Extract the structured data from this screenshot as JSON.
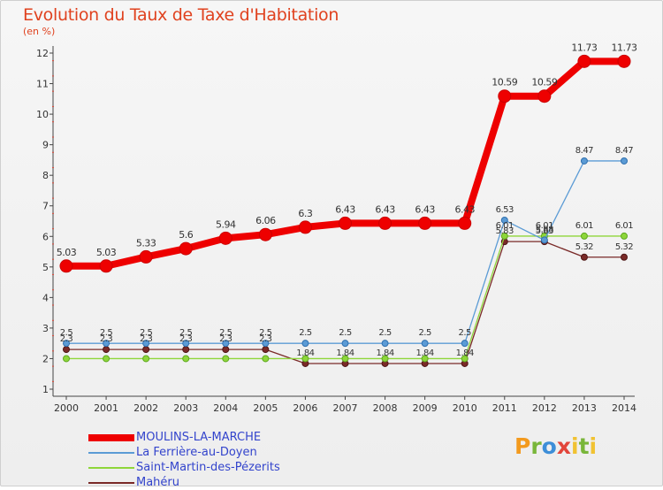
{
  "title": "Evolution du Taux de Taxe d'Habitation",
  "subtitle": "(en %)",
  "logo_text": "Proxiti",
  "chart_data": {
    "type": "line",
    "title": "Evolution du Taux de Taxe d'Habitation",
    "ylabel": "(en %)",
    "xlabel": "",
    "x": [
      "2000",
      "2001",
      "2002",
      "2003",
      "2004",
      "2005",
      "2006",
      "2007",
      "2008",
      "2009",
      "2010",
      "2011",
      "2012",
      "2013",
      "2014"
    ],
    "ylim": [
      1,
      12
    ],
    "yticks": [
      "1",
      "2",
      "3",
      "4",
      "5",
      "6",
      "7",
      "8",
      "9",
      "10",
      "11",
      "12"
    ],
    "grid": false,
    "legend_position": "bottom-left",
    "series": [
      {
        "name": "MOULINS-LA-MARCHE",
        "color": "#ee0000",
        "values": [
          5.03,
          5.03,
          5.33,
          5.6,
          5.94,
          6.06,
          6.3,
          6.43,
          6.43,
          6.43,
          6.43,
          10.59,
          10.59,
          11.73,
          11.73
        ],
        "labels": [
          "5.03",
          "5.03",
          "5.33",
          "5.6",
          "5.94",
          "6.06",
          "6.3",
          "6.43",
          "6.43",
          "6.43",
          "6.43",
          "10.59",
          "10.59",
          "11.73",
          "11.73"
        ]
      },
      {
        "name": "La Ferrière-au-Doyen",
        "color": "#5b9bd5",
        "values": [
          2.5,
          2.5,
          2.5,
          2.5,
          2.5,
          2.5,
          2.5,
          2.5,
          2.5,
          2.5,
          2.5,
          6.53,
          5.88,
          8.47,
          8.47
        ],
        "labels": [
          "2.5",
          "2.5",
          "2.5",
          "2.5",
          "2.5",
          "2.5",
          "2.5",
          "2.5",
          "2.5",
          "2.5",
          "2.5",
          "6.53",
          "5.88",
          "8.47",
          "8.47"
        ]
      },
      {
        "name": "Saint-Martin-des-Pézerits",
        "color": "#8ed63a",
        "values": [
          2,
          2,
          2,
          2,
          2,
          2,
          2,
          2,
          2,
          2,
          2,
          6.01,
          6.01,
          6.01,
          6.01
        ],
        "labels": [
          "",
          "",
          "",
          "",
          "",
          "",
          "",
          "",
          "",
          "",
          "",
          "6.01",
          "6.01",
          "6.01",
          "6.01"
        ]
      },
      {
        "name": "Mahéru",
        "color": "#7a2a28",
        "values": [
          2.3,
          2.3,
          2.3,
          2.3,
          2.3,
          2.3,
          1.84,
          1.84,
          1.84,
          1.84,
          1.84,
          5.83,
          5.83,
          5.32,
          5.32
        ],
        "labels": [
          "2.3",
          "2.3",
          "2.3",
          "2.3",
          "2.3",
          "2.3",
          "1.84",
          "1.84",
          "1.84",
          "1.84",
          "1.84",
          "5.83",
          "5.83",
          "5.32",
          "5.32"
        ]
      }
    ]
  }
}
